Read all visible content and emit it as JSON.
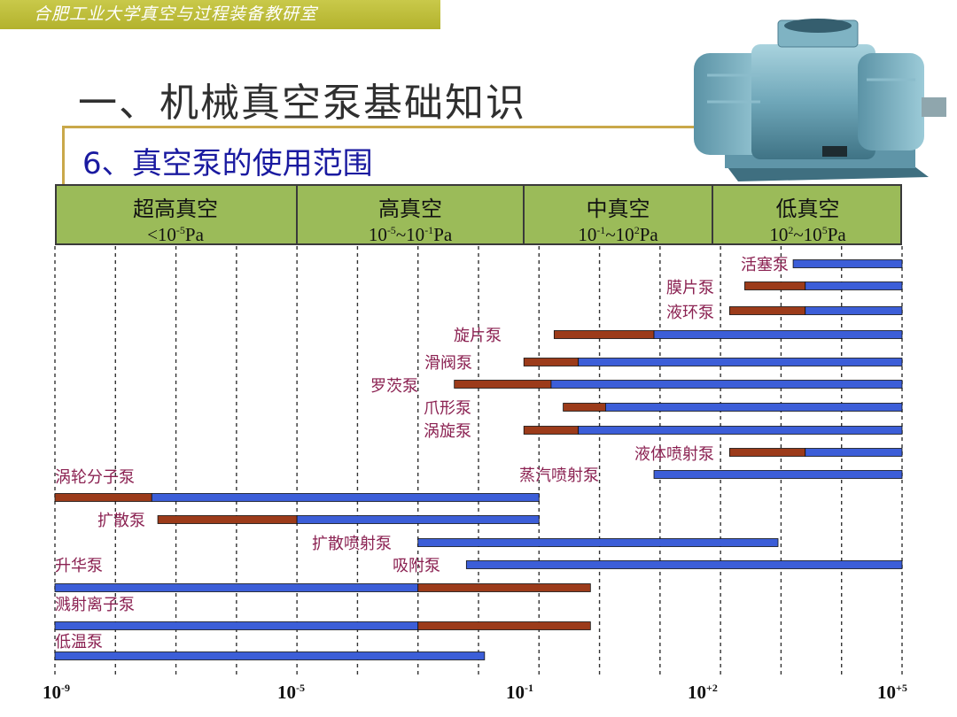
{
  "lab_banner": "合肥工业大学真空与过程装备教研室",
  "main_title": "一、机械真空泵基础知识",
  "sub_title": "6、真空泵的使用范围",
  "pump_photo": "vacuum-pump-photo",
  "header": [
    {
      "name": "超高真空",
      "range_prefix": "<10",
      "range_exp": "-5",
      "range_suffix": "Pa"
    },
    {
      "name": "高真空",
      "range_prefix": "10",
      "range_exp": "-5",
      "range_mid": "~10",
      "range_exp2": "-1",
      "range_suffix": "Pa"
    },
    {
      "name": "中真空",
      "range_prefix": "10",
      "range_exp": "-1",
      "range_mid": "~10",
      "range_exp2": "2",
      "range_suffix": "Pa"
    },
    {
      "name": "低真空",
      "range_prefix": "10",
      "range_exp": "2",
      "range_mid": "~10",
      "range_exp2": "5",
      "range_suffix": "Pa"
    }
  ],
  "x_ticks": [
    {
      "base": "10",
      "exp": "-9"
    },
    {
      "base": "10",
      "exp": "-5"
    },
    {
      "base": "10",
      "exp": "-1"
    },
    {
      "base": "10",
      "exp": "+2"
    },
    {
      "base": "10",
      "exp": "+5"
    }
  ],
  "colors": {
    "header_bg": "#9bbb59",
    "extended_range": "#9c3b1a",
    "normal_range": "#3c5ed8",
    "label": "#8b2252",
    "grid": "#333333"
  },
  "chart_data": {
    "type": "range-bar",
    "x_scale": "log10",
    "x_unit": "Pa",
    "xlim_log10": [
      -9,
      5
    ],
    "legend": "none",
    "bars": [
      {
        "name": "活塞泵",
        "segments": [
          {
            "from": 3.2,
            "to": 5.0,
            "kind": "normal"
          }
        ]
      },
      {
        "name": "膜片泵",
        "segments": [
          {
            "from": 2.4,
            "to": 3.4,
            "kind": "extended"
          },
          {
            "from": 3.4,
            "to": 5.0,
            "kind": "normal"
          }
        ]
      },
      {
        "name": "液环泵",
        "segments": [
          {
            "from": 2.15,
            "to": 3.4,
            "kind": "extended"
          },
          {
            "from": 3.4,
            "to": 5.0,
            "kind": "normal"
          }
        ]
      },
      {
        "name": "旋片泵",
        "segments": [
          {
            "from": -0.75,
            "to": 0.9,
            "kind": "extended"
          },
          {
            "from": 0.9,
            "to": 5.0,
            "kind": "normal"
          }
        ]
      },
      {
        "name": "滑阀泵",
        "segments": [
          {
            "from": -1.25,
            "to": -0.35,
            "kind": "extended"
          },
          {
            "from": -0.35,
            "to": 5.0,
            "kind": "normal"
          }
        ]
      },
      {
        "name": "罗茨泵",
        "segments": [
          {
            "from": -2.4,
            "to": -0.8,
            "kind": "extended"
          },
          {
            "from": -0.8,
            "to": 5.0,
            "kind": "normal"
          }
        ]
      },
      {
        "name": "爪形泵",
        "segments": [
          {
            "from": -0.6,
            "to": 0.1,
            "kind": "extended"
          },
          {
            "from": 0.1,
            "to": 5.0,
            "kind": "normal"
          }
        ]
      },
      {
        "name": "涡旋泵",
        "segments": [
          {
            "from": -1.25,
            "to": -0.35,
            "kind": "extended"
          },
          {
            "from": -0.35,
            "to": 5.0,
            "kind": "normal"
          }
        ]
      },
      {
        "name": "液体喷射泵",
        "segments": [
          {
            "from": 2.15,
            "to": 3.4,
            "kind": "extended"
          },
          {
            "from": 3.4,
            "to": 5.0,
            "kind": "normal"
          }
        ]
      },
      {
        "name": "蒸汽喷射泵",
        "segments": [
          {
            "from": 0.9,
            "to": 5.0,
            "kind": "normal"
          }
        ]
      },
      {
        "name": "涡轮分子泵",
        "segments": [
          {
            "from": -9.0,
            "to": -7.4,
            "kind": "extended"
          },
          {
            "from": -7.4,
            "to": -1.0,
            "kind": "normal"
          }
        ]
      },
      {
        "name": "扩散泵",
        "segments": [
          {
            "from": -7.3,
            "to": -5.0,
            "kind": "extended"
          },
          {
            "from": -5.0,
            "to": -1.0,
            "kind": "normal"
          }
        ]
      },
      {
        "name": "扩散喷射泵",
        "segments": [
          {
            "from": -3.0,
            "to": 2.95,
            "kind": "normal"
          }
        ]
      },
      {
        "name": "吸附泵",
        "segments": [
          {
            "from": -2.2,
            "to": 5.0,
            "kind": "normal"
          }
        ]
      },
      {
        "name": "升华泵",
        "segments": [
          {
            "from": -9.0,
            "to": -3.0,
            "kind": "normal"
          },
          {
            "from": -3.0,
            "to": -0.15,
            "kind": "extended"
          }
        ]
      },
      {
        "name": "溅射离子泵",
        "segments": [
          {
            "from": -9.0,
            "to": -3.0,
            "kind": "normal"
          },
          {
            "from": -3.0,
            "to": -0.15,
            "kind": "extended"
          }
        ]
      },
      {
        "name": "低温泵",
        "segments": [
          {
            "from": -9.0,
            "to": -1.9,
            "kind": "normal"
          }
        ]
      }
    ]
  }
}
